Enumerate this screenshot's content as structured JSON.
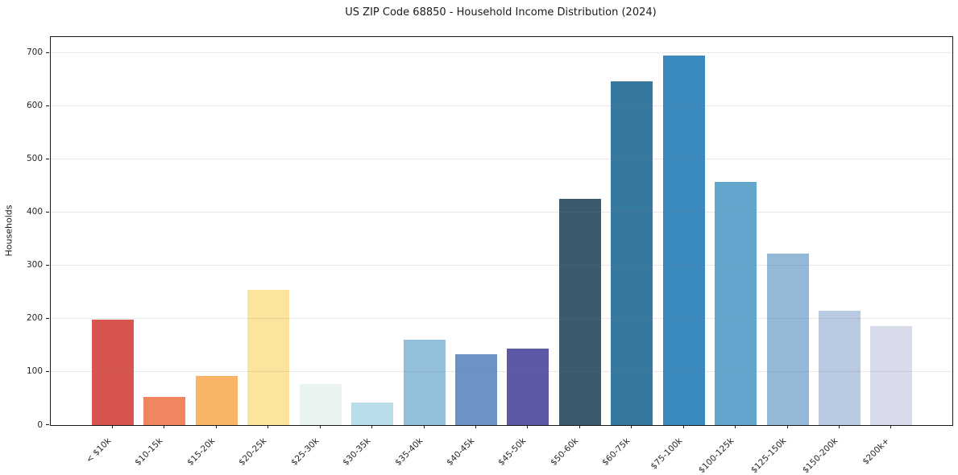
{
  "chart_data": {
    "type": "bar",
    "title": "US ZIP Code 68850 - Household Income Distribution (2024)",
    "xlabel": "",
    "ylabel": "Households",
    "categories": [
      "< $10k",
      "$10-15k",
      "$15-20k",
      "$20-25k",
      "$25-30k",
      "$30-35k",
      "$35-40k",
      "$40-45k",
      "$45-50k",
      "$50-60k",
      "$60-75k",
      "$75-100k",
      "$100-125k",
      "$125-150k",
      "$150-200k",
      "$200k+"
    ],
    "values": [
      198,
      53,
      93,
      254,
      77,
      43,
      160,
      133,
      144,
      425,
      646,
      695,
      457,
      322,
      215,
      187
    ],
    "bar_colors": [
      "#d8544e",
      "#f08560",
      "#f9b468",
      "#fde49c",
      "#e9f3f1",
      "#b9dde8",
      "#92bfdb",
      "#6b93c5",
      "#5c59a9",
      "#3a5a6e",
      "#37789f",
      "#3a8abf",
      "#62a6cd",
      "#94b8d8",
      "#bac9e2",
      "#d8dbe9"
    ],
    "ylim": [
      0,
      730
    ],
    "yticks": [
      0,
      100,
      200,
      300,
      400,
      500,
      600,
      700
    ],
    "grid": "horizontal",
    "legend": "none",
    "colors": {
      "background": "#ffffff",
      "axis": "#1a1a1a",
      "gridline": "#e9e9e9",
      "text": "#262626"
    }
  }
}
